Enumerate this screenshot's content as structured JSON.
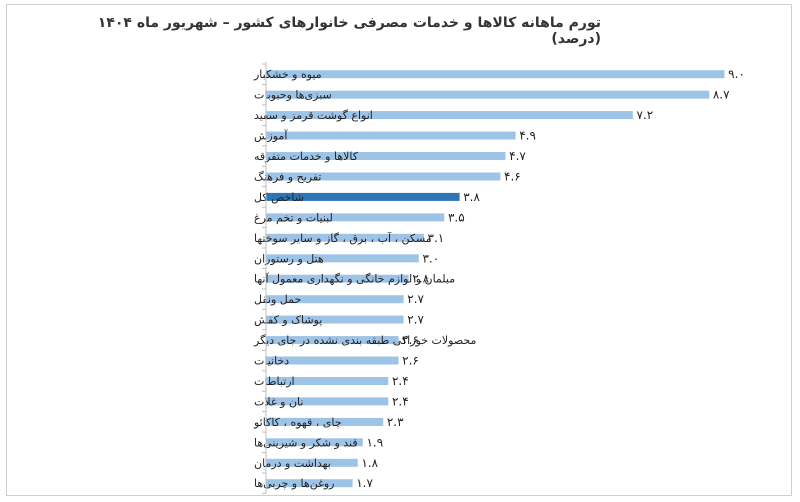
{
  "chart_data": {
    "type": "bar",
    "orientation": "horizontal",
    "title": "تورم ماهانه کالاها و خدمات مصرفی خانوارهای کشور – شهریور ماه ۱۴۰۴ (درصد)",
    "xlim": [
      0,
      9.5
    ],
    "categories": [
      "میوه و خشکبار",
      "سبزی‌ها وحبوبات",
      "انواع گوشت قرمز و سفید",
      "آموزش",
      "کالاها و خدمات متفرقه",
      "تفریح و فرهنگ",
      "شاخص کل",
      "لبنیات و تخم مرغ",
      "مسکن ، آب ، برق ، گاز و سایر سوختها",
      "هتل و رستوران",
      "مبلمان و لوازم خانگی و نگهداری معمول آنها",
      "حمل ونقل",
      "پوشاک و کفش",
      "محصولات خوراکی طبقه بندی نشده در جای دیگر",
      "دخانیات",
      "ارتباطات",
      "نان و غلات",
      "چای ، قهوه ، کاکائو",
      "قند و شکر و شیرینی‌ها",
      "بهداشت و درمان",
      "روغن‌ها و چربی‌ها"
    ],
    "values": [
      9.0,
      8.7,
      7.2,
      4.9,
      4.7,
      4.6,
      3.8,
      3.5,
      3.1,
      3.0,
      2.8,
      2.7,
      2.7,
      2.6,
      2.6,
      2.4,
      2.4,
      2.3,
      1.9,
      1.8,
      1.7
    ],
    "value_labels": [
      "۹.۰",
      "۸.۷",
      "۷.۲",
      "۴.۹",
      "۴.۷",
      "۴.۶",
      "۳.۸",
      "۳.۵",
      "۳.۱",
      "۳.۰",
      "۲.۸",
      "۲.۷",
      "۲.۷",
      "۲.۶",
      "۲.۶",
      "۲.۴",
      "۲.۴",
      "۲.۳",
      "۱.۹",
      "۱.۸",
      "۱.۷"
    ],
    "highlight_category": "شاخص کل",
    "colors": {
      "bar": "#9dc3e6",
      "highlight": "#2e75b6",
      "axis": "#bfbfbf"
    },
    "grid": false,
    "legend": "none"
  }
}
